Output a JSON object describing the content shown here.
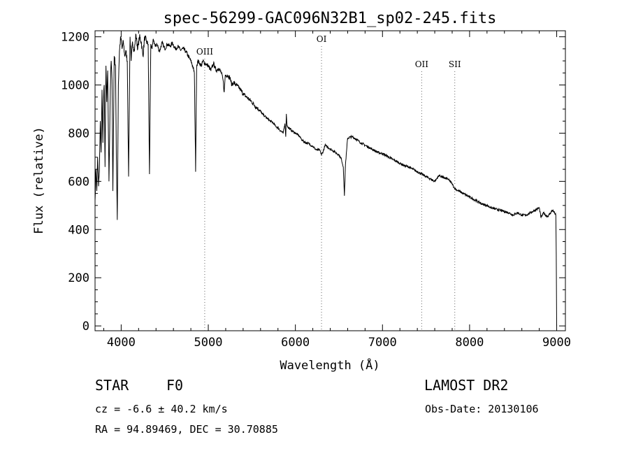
{
  "chart_data": {
    "type": "line",
    "title": "spec-56299-GAC096N32B1_sp02-245.fits",
    "xlabel": "Wavelength (Å)",
    "ylabel": "Flux (relative)",
    "xlim": [
      3700,
      9100
    ],
    "ylim": [
      -20,
      1225
    ],
    "xticks": [
      4000,
      5000,
      6000,
      7000,
      8000,
      9000
    ],
    "yticks": [
      0,
      200,
      400,
      600,
      800,
      1000,
      1200
    ],
    "grid": false,
    "emission_lines": [
      {
        "name": "OIII",
        "x": 4959
      },
      {
        "name": "OI",
        "x": 6300
      },
      {
        "name": "OII",
        "x": 7450
      },
      {
        "name": "SII",
        "x": 7830
      }
    ],
    "series": [
      {
        "x": [
          3700,
          3710,
          3720,
          3730,
          3740,
          3750,
          3760,
          3770,
          3780,
          3790,
          3798,
          3805,
          3815,
          3825,
          3835,
          3845,
          3860,
          3875,
          3885,
          3895,
          3905,
          3920,
          3935,
          3945,
          3955,
          3968,
          3980,
          3995,
          4010,
          4025,
          4040,
          4055,
          4070,
          4085,
          4102,
          4115,
          4130,
          4150,
          4170,
          4190,
          4210,
          4230,
          4250,
          4270,
          4290,
          4310,
          4325,
          4340,
          4355,
          4370,
          4390,
          4410,
          4440,
          4470,
          4500,
          4530,
          4560,
          4590,
          4620,
          4650,
          4680,
          4710,
          4740,
          4770,
          4800,
          4820,
          4840,
          4855,
          4861,
          4867,
          4880,
          4900,
          4920,
          4940,
          4960,
          4980,
          5000,
          5030,
          5060,
          5090,
          5120,
          5150,
          5170,
          5183,
          5195,
          5220,
          5250,
          5270,
          5290,
          5320,
          5350,
          5380,
          5410,
          5440,
          5470,
          5500,
          5530,
          5560,
          5590,
          5620,
          5650,
          5680,
          5710,
          5740,
          5770,
          5800,
          5830,
          5860,
          5880,
          5890,
          5896,
          5905,
          5930,
          5960,
          6000,
          6040,
          6080,
          6120,
          6160,
          6200,
          6240,
          6280,
          6300,
          6320,
          6340,
          6380,
          6420,
          6460,
          6500,
          6530,
          6550,
          6563,
          6575,
          6600,
          6650,
          6700,
          6750,
          6800,
          6850,
          6900,
          6950,
          7000,
          7050,
          7100,
          7150,
          7200,
          7250,
          7300,
          7350,
          7400,
          7450,
          7500,
          7550,
          7600,
          7650,
          7700,
          7750,
          7800,
          7820,
          7850,
          7900,
          7950,
          8000,
          8050,
          8100,
          8150,
          8200,
          8250,
          8300,
          8350,
          8400,
          8450,
          8500,
          8550,
          8600,
          8650,
          8700,
          8750,
          8800,
          8820,
          8850,
          8870,
          8900,
          8950,
          8975,
          8990,
          8995,
          9000
        ],
        "y": [
          520,
          650,
          560,
          700,
          580,
          640,
          850,
          720,
          980,
          760,
          940,
          1000,
          660,
          1080,
          930,
          1060,
          600,
          980,
          1100,
          1020,
          560,
          1120,
          1080,
          700,
          440,
          1000,
          1140,
          1200,
          1150,
          1180,
          1120,
          1140,
          1100,
          620,
          1200,
          1100,
          1180,
          1140,
          1210,
          1150,
          1200,
          1180,
          1120,
          1200,
          1180,
          1170,
          630,
          1170,
          1150,
          1190,
          1160,
          1170,
          1140,
          1175,
          1150,
          1170,
          1160,
          1175,
          1150,
          1160,
          1145,
          1150,
          1140,
          1120,
          1100,
          1080,
          1050,
          640,
          900,
          1080,
          1100,
          1090,
          1080,
          1100,
          1090,
          1085,
          1080,
          1060,
          1090,
          1060,
          1070,
          1050,
          1020,
          970,
          1040,
          1040,
          1030,
          1000,
          1010,
          1000,
          990,
          975,
          960,
          950,
          940,
          930,
          915,
          905,
          895,
          880,
          870,
          860,
          850,
          845,
          830,
          822,
          810,
          800,
          840,
          785,
          880,
          830,
          820,
          810,
          800,
          790,
          770,
          760,
          755,
          745,
          730,
          730,
          710,
          725,
          750,
          740,
          730,
          720,
          710,
          690,
          660,
          540,
          670,
          780,
          785,
          775,
          760,
          750,
          740,
          730,
          720,
          715,
          705,
          695,
          685,
          675,
          665,
          660,
          650,
          640,
          630,
          620,
          610,
          600,
          625,
          615,
          610,
          590,
          575,
          565,
          555,
          545,
          535,
          525,
          515,
          505,
          500,
          490,
          485,
          480,
          475,
          470,
          460,
          470,
          460,
          460,
          470,
          480,
          490,
          450,
          470,
          460,
          455,
          480,
          470,
          460,
          300,
          0
        ]
      }
    ],
    "annotations": {
      "object_type": "STAR",
      "subclass": "F0",
      "survey": "LAMOST DR2",
      "cz": "cz = -6.6 ± 40.2 km/s",
      "obs_date": "Obs-Date: 20130106",
      "coords": "RA =  94.89469, DEC =  30.70885"
    }
  }
}
